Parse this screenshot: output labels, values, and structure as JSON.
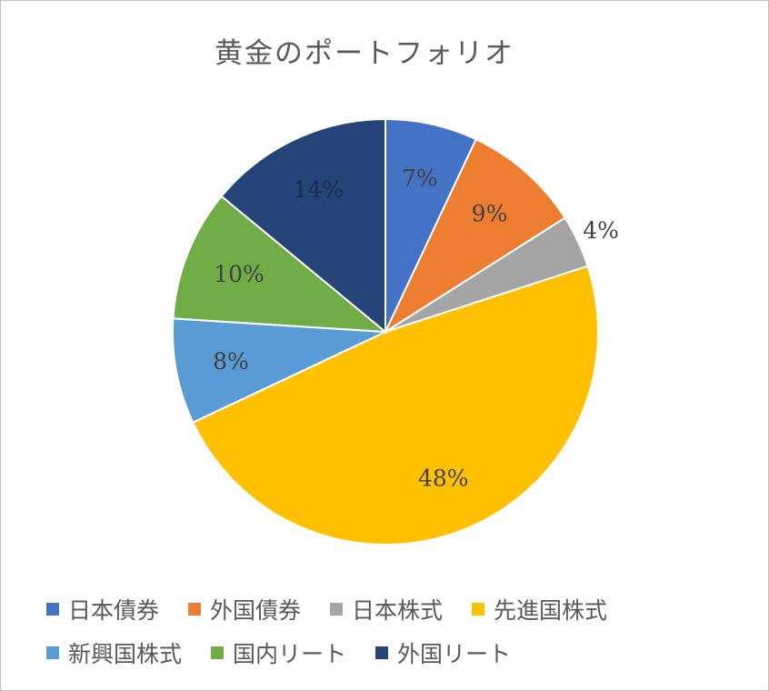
{
  "chart_data": {
    "type": "pie",
    "title": "黄金のポートフォリオ",
    "categories": [
      "日本債券",
      "外国債券",
      "日本株式",
      "先進国株式",
      "新興国株式",
      "国内リート",
      "外国リート"
    ],
    "values": [
      7,
      9,
      4,
      48,
      8,
      10,
      14
    ],
    "labels": [
      "7%",
      "9%",
      "4%",
      "48%",
      "8%",
      "10%",
      "14%"
    ],
    "colors": [
      "#4472C4",
      "#ED7D31",
      "#A5A5A5",
      "#FFC000",
      "#5B9BD5",
      "#70AD47",
      "#264478"
    ],
    "legend": "bottom"
  }
}
